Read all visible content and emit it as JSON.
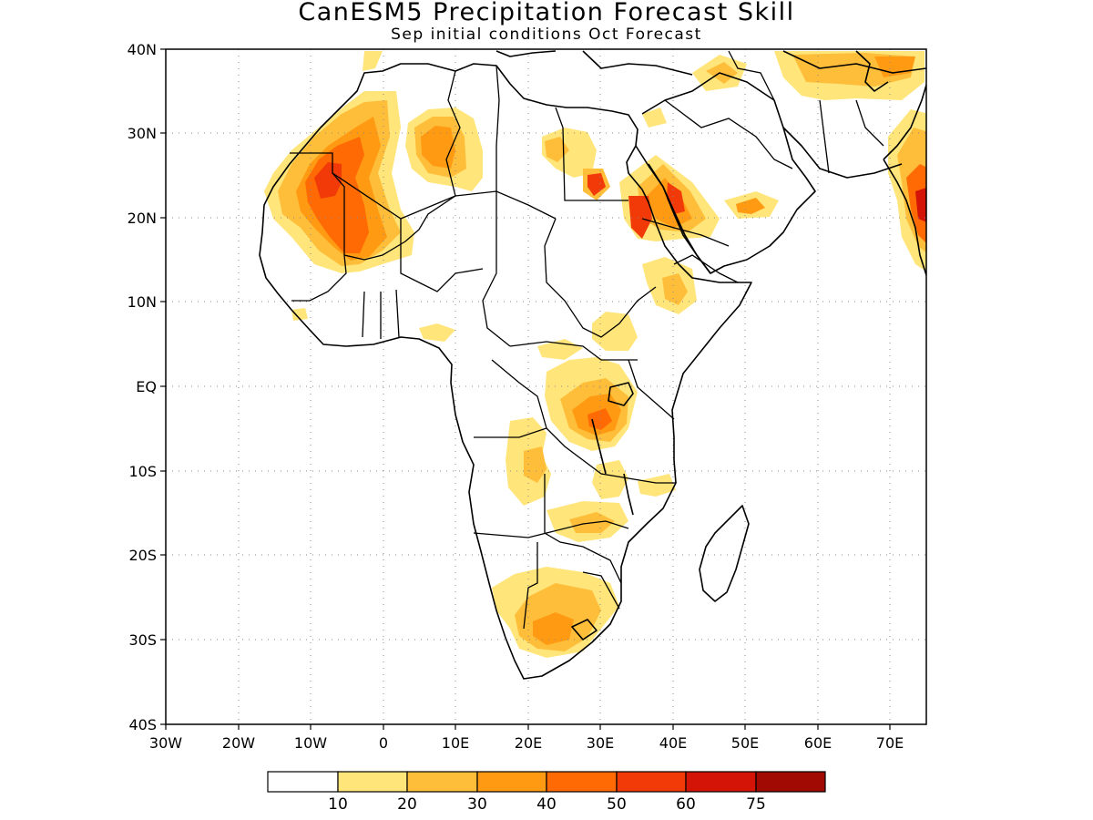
{
  "title": "CanESM5 Precipitation Forecast Skill",
  "subtitle": "Sep initial conditions  Oct Forecast",
  "map": {
    "lon_range": [
      -30,
      75
    ],
    "lat_range": [
      -40,
      40
    ],
    "lon_ticks": [
      {
        "value": -30,
        "label": "30W"
      },
      {
        "value": -20,
        "label": "20W"
      },
      {
        "value": -10,
        "label": "10W"
      },
      {
        "value": 0,
        "label": "0"
      },
      {
        "value": 10,
        "label": "10E"
      },
      {
        "value": 20,
        "label": "20E"
      },
      {
        "value": 30,
        "label": "30E"
      },
      {
        "value": 40,
        "label": "40E"
      },
      {
        "value": 50,
        "label": "50E"
      },
      {
        "value": 60,
        "label": "60E"
      },
      {
        "value": 70,
        "label": "70E"
      }
    ],
    "lat_ticks": [
      {
        "value": 40,
        "label": "40N"
      },
      {
        "value": 30,
        "label": "30N"
      },
      {
        "value": 20,
        "label": "20N"
      },
      {
        "value": 10,
        "label": "10N"
      },
      {
        "value": 0,
        "label": "EQ"
      },
      {
        "value": -10,
        "label": "10S"
      },
      {
        "value": -20,
        "label": "20S"
      },
      {
        "value": -30,
        "label": "30S"
      },
      {
        "value": -40,
        "label": "40S"
      }
    ],
    "gridlines": "dotted"
  },
  "colorbar": {
    "colors": [
      "#ffffff",
      "#ffe57a",
      "#ffbe3a",
      "#ff9a12",
      "#ff6a05",
      "#f23a08",
      "#d41406",
      "#a00a02"
    ],
    "labels": [
      "10",
      "20",
      "30",
      "40",
      "50",
      "60",
      "75"
    ]
  },
  "skill_regions": [
    {
      "lon": -8,
      "lat": 24,
      "rx": 5,
      "ry": 7,
      "level": 2
    },
    {
      "lon": -9,
      "lat": 25,
      "rx": 3,
      "ry": 3,
      "level": 4
    },
    {
      "lon": -6,
      "lat": 19,
      "rx": 2.5,
      "ry": 2.5,
      "level": 4
    },
    {
      "lon": 8,
      "lat": 27,
      "rx": 4,
      "ry": 4,
      "level": 2
    },
    {
      "lon": 8,
      "lat": 27,
      "rx": 2,
      "ry": 2,
      "level": 3
    },
    {
      "lon": 29,
      "lat": 24,
      "rx": 1.5,
      "ry": 1.5,
      "level": 5
    },
    {
      "lon": 37,
      "lat": 21,
      "rx": 4,
      "ry": 3,
      "level": 3
    },
    {
      "lon": 35,
      "lat": 21,
      "rx": 1.5,
      "ry": 2,
      "level": 5
    },
    {
      "lon": 50,
      "lat": 21,
      "rx": 3,
      "ry": 1.5,
      "level": 3
    },
    {
      "lon": 41,
      "lat": 11.5,
      "rx": 2.5,
      "ry": 2,
      "level": 2
    },
    {
      "lon": 32,
      "lat": -5,
      "rx": 3.5,
      "ry": 3,
      "level": 3
    },
    {
      "lon": 24,
      "lat": -28,
      "rx": 4,
      "ry": 2.5,
      "level": 2
    },
    {
      "lon": 71,
      "lat": 23,
      "rx": 3,
      "ry": 6,
      "level": 4
    },
    {
      "lon": 71,
      "lat": 21,
      "rx": 2,
      "ry": 2,
      "level": 5
    },
    {
      "lon": 64,
      "lat": 37,
      "rx": 8,
      "ry": 3,
      "level": 2
    }
  ]
}
